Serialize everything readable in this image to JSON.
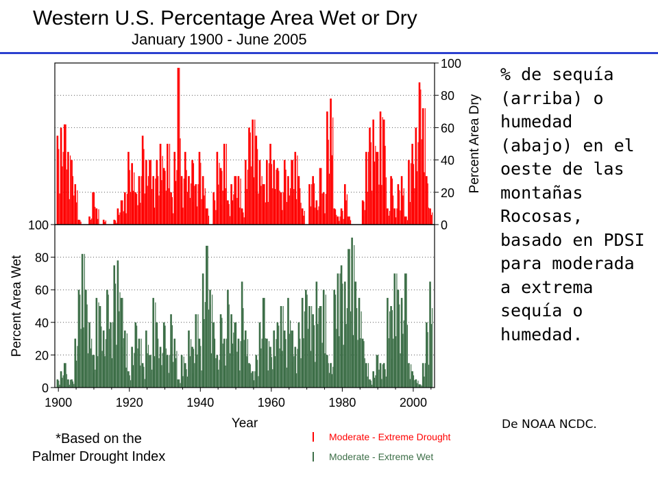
{
  "header": {
    "title": "Western U.S. Percentage Area Wet or Dry",
    "subtitle": "January 1900 - June  2005"
  },
  "note": {
    "line1": "*Based on the",
    "line2": "Palmer Drought Index"
  },
  "legend": {
    "drought": "Moderate - Extreme Drought",
    "wet": "Moderate - Extreme Wet"
  },
  "side_text": "% de sequía (arriba) o humedad (abajo) en el oeste de las montañas Rocosas, basado en PDSI para moderada a extrema sequía o humedad.",
  "source": "De NOAA NCDC.",
  "colors": {
    "drought": "#ff0000",
    "wet": "#3c6e47",
    "rule": "#2b3fcf"
  },
  "chart_data": [
    {
      "type": "area",
      "title": "Percent Area Dry",
      "ylabel": "Percent Area Dry",
      "ylim": [
        0,
        100
      ],
      "yticks": [
        0,
        20,
        40,
        60,
        80,
        100
      ],
      "grid": true,
      "x": [
        1900,
        1901,
        1902,
        1903,
        1904,
        1905,
        1906,
        1907,
        1908,
        1909,
        1910,
        1911,
        1912,
        1913,
        1914,
        1915,
        1916,
        1917,
        1918,
        1919,
        1920,
        1921,
        1922,
        1923,
        1924,
        1925,
        1926,
        1927,
        1928,
        1929,
        1930,
        1931,
        1932,
        1933,
        1934,
        1935,
        1936,
        1937,
        1938,
        1939,
        1940,
        1941,
        1942,
        1943,
        1944,
        1945,
        1946,
        1947,
        1948,
        1949,
        1950,
        1951,
        1952,
        1953,
        1954,
        1955,
        1956,
        1957,
        1958,
        1959,
        1960,
        1961,
        1962,
        1963,
        1964,
        1965,
        1966,
        1967,
        1968,
        1969,
        1970,
        1971,
        1972,
        1973,
        1974,
        1975,
        1976,
        1977,
        1978,
        1979,
        1980,
        1981,
        1982,
        1983,
        1984,
        1985,
        1986,
        1987,
        1988,
        1989,
        1990,
        1991,
        1992,
        1993,
        1994,
        1995,
        1996,
        1997,
        1998,
        1999,
        2000,
        2001,
        2002,
        2003,
        2004,
        2005
      ],
      "values": [
        55,
        60,
        62,
        45,
        40,
        25,
        3,
        0,
        0,
        5,
        20,
        10,
        0,
        3,
        0,
        0,
        3,
        10,
        15,
        20,
        45,
        38,
        20,
        30,
        55,
        40,
        40,
        30,
        40,
        50,
        35,
        50,
        20,
        45,
        97,
        30,
        45,
        30,
        40,
        25,
        45,
        30,
        10,
        0,
        20,
        45,
        35,
        50,
        15,
        25,
        30,
        30,
        10,
        40,
        60,
        65,
        55,
        40,
        25,
        40,
        50,
        40,
        35,
        20,
        40,
        30,
        40,
        45,
        30,
        10,
        0,
        25,
        30,
        15,
        35,
        20,
        70,
        78,
        10,
        5,
        10,
        25,
        5,
        0,
        0,
        0,
        15,
        45,
        60,
        65,
        45,
        70,
        65,
        10,
        30,
        10,
        25,
        30,
        5,
        40,
        50,
        60,
        88,
        72,
        30,
        10
      ]
    },
    {
      "type": "area",
      "title": "Percent Area Wet",
      "xlabel": "Year",
      "ylabel": "Percent Area Wet",
      "ylim": [
        0,
        100
      ],
      "yticks": [
        0,
        20,
        40,
        60,
        80,
        100
      ],
      "xlim": [
        1899,
        2006
      ],
      "xticks": [
        1900,
        1920,
        1940,
        1960,
        1980,
        2000
      ],
      "grid": true,
      "x": [
        1900,
        1901,
        1902,
        1903,
        1904,
        1905,
        1906,
        1907,
        1908,
        1909,
        1910,
        1911,
        1912,
        1913,
        1914,
        1915,
        1916,
        1917,
        1918,
        1919,
        1920,
        1921,
        1922,
        1923,
        1924,
        1925,
        1926,
        1927,
        1928,
        1929,
        1930,
        1931,
        1932,
        1933,
        1934,
        1935,
        1936,
        1937,
        1938,
        1939,
        1940,
        1941,
        1942,
        1943,
        1944,
        1945,
        1946,
        1947,
        1948,
        1949,
        1950,
        1951,
        1952,
        1953,
        1954,
        1955,
        1956,
        1957,
        1958,
        1959,
        1960,
        1961,
        1962,
        1963,
        1964,
        1965,
        1966,
        1967,
        1968,
        1969,
        1970,
        1971,
        1972,
        1973,
        1974,
        1975,
        1976,
        1977,
        1978,
        1979,
        1980,
        1981,
        1982,
        1983,
        1984,
        1985,
        1986,
        1987,
        1988,
        1989,
        1990,
        1991,
        1992,
        1993,
        1994,
        1995,
        1996,
        1997,
        1998,
        1999,
        2000,
        2001,
        2002,
        2003,
        2004,
        2005
      ],
      "values": [
        5,
        10,
        15,
        5,
        5,
        30,
        60,
        82,
        60,
        40,
        20,
        55,
        50,
        35,
        60,
        40,
        75,
        78,
        55,
        35,
        10,
        25,
        40,
        30,
        15,
        35,
        20,
        55,
        40,
        25,
        40,
        20,
        45,
        30,
        5,
        20,
        15,
        35,
        25,
        45,
        30,
        70,
        87,
        60,
        40,
        20,
        45,
        30,
        60,
        45,
        40,
        30,
        65,
        35,
        15,
        10,
        20,
        40,
        55,
        30,
        25,
        35,
        40,
        50,
        35,
        55,
        35,
        25,
        40,
        55,
        60,
        50,
        45,
        65,
        50,
        60,
        20,
        15,
        60,
        70,
        75,
        65,
        85,
        92,
        65,
        55,
        30,
        15,
        5,
        10,
        20,
        15,
        15,
        55,
        50,
        70,
        60,
        55,
        70,
        15,
        10,
        5,
        2,
        15,
        40,
        65
      ]
    }
  ]
}
